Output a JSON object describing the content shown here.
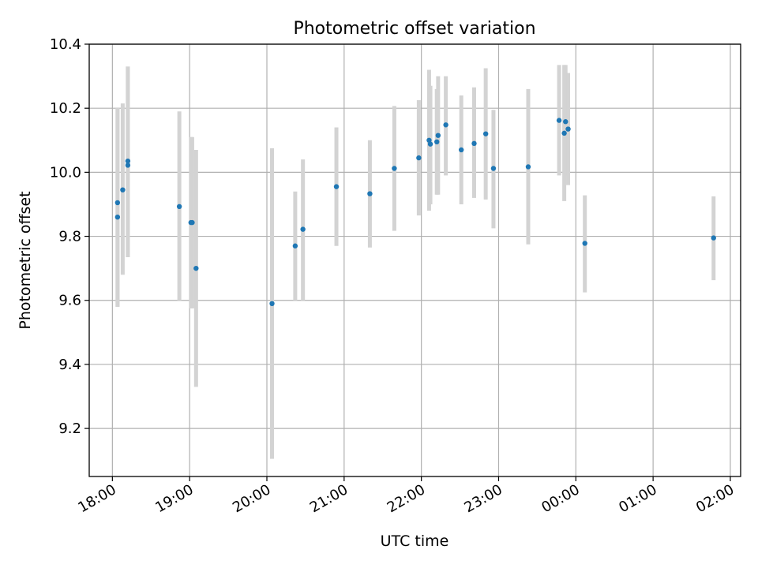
{
  "chart_data": {
    "type": "scatter",
    "title": "Photometric offset variation",
    "xlabel": "UTC time",
    "ylabel": "Photometric offset",
    "x_tick_labels": [
      "18:00",
      "19:00",
      "20:00",
      "21:00",
      "22:00",
      "23:00",
      "00:00",
      "01:00",
      "02:00"
    ],
    "y_ticks": [
      9.2,
      9.4,
      9.6,
      9.8,
      10.0,
      10.2,
      10.4
    ],
    "y_tick_labels": [
      "9.2",
      "9.4",
      "9.6",
      "9.8",
      "10.0",
      "10.2",
      "10.4"
    ],
    "xlim": [
      "17:42",
      "02:08"
    ],
    "ylim": [
      9.05,
      10.4
    ],
    "grid": true,
    "colors": {
      "points": "#1f77b4",
      "errorbars": "#d3d3d3",
      "grid": "#b0b0b0"
    },
    "points": [
      {
        "x": "18:04",
        "y": 9.86,
        "ylow": 9.58,
        "yhigh": 10.2
      },
      {
        "x": "18:04",
        "y": 9.905,
        "ylow": 9.58,
        "yhigh": 10.2
      },
      {
        "x": "18:08",
        "y": 9.945,
        "ylow": 9.68,
        "yhigh": 10.215
      },
      {
        "x": "18:12",
        "y": 10.035,
        "ylow": 9.735,
        "yhigh": 10.33
      },
      {
        "x": "18:12",
        "y": 10.022,
        "ylow": 9.735,
        "yhigh": 10.33
      },
      {
        "x": "18:52",
        "y": 9.893,
        "ylow": 9.6,
        "yhigh": 10.19
      },
      {
        "x": "19:01",
        "y": 9.843,
        "ylow": 9.575,
        "yhigh": 10.11
      },
      {
        "x": "19:02",
        "y": 9.843,
        "ylow": 9.575,
        "yhigh": 10.11
      },
      {
        "x": "19:05",
        "y": 9.7,
        "ylow": 9.33,
        "yhigh": 10.07
      },
      {
        "x": "20:04",
        "y": 9.59,
        "ylow": 9.105,
        "yhigh": 10.075
      },
      {
        "x": "20:22",
        "y": 9.77,
        "ylow": 9.6,
        "yhigh": 9.94
      },
      {
        "x": "20:28",
        "y": 9.822,
        "ylow": 9.6,
        "yhigh": 10.04
      },
      {
        "x": "20:54",
        "y": 9.955,
        "ylow": 9.77,
        "yhigh": 10.14
      },
      {
        "x": "21:20",
        "y": 9.933,
        "ylow": 9.765,
        "yhigh": 10.1
      },
      {
        "x": "21:39",
        "y": 10.012,
        "ylow": 9.817,
        "yhigh": 10.207
      },
      {
        "x": "21:58",
        "y": 10.045,
        "ylow": 9.865,
        "yhigh": 10.225
      },
      {
        "x": "22:06",
        "y": 10.1,
        "ylow": 9.88,
        "yhigh": 10.32
      },
      {
        "x": "22:07",
        "y": 10.088,
        "ylow": 9.9,
        "yhigh": 10.27
      },
      {
        "x": "22:12",
        "y": 10.095,
        "ylow": 9.93,
        "yhigh": 10.26
      },
      {
        "x": "22:13",
        "y": 10.115,
        "ylow": 9.93,
        "yhigh": 10.3
      },
      {
        "x": "22:19",
        "y": 10.148,
        "ylow": 9.99,
        "yhigh": 10.3
      },
      {
        "x": "22:31",
        "y": 10.07,
        "ylow": 9.9,
        "yhigh": 10.24
      },
      {
        "x": "22:41",
        "y": 10.09,
        "ylow": 9.92,
        "yhigh": 10.265
      },
      {
        "x": "22:50",
        "y": 10.12,
        "ylow": 9.915,
        "yhigh": 10.325
      },
      {
        "x": "22:56",
        "y": 10.012,
        "ylow": 9.825,
        "yhigh": 10.195
      },
      {
        "x": "23:23",
        "y": 10.017,
        "ylow": 9.775,
        "yhigh": 10.26
      },
      {
        "x": "23:47",
        "y": 10.162,
        "ylow": 9.99,
        "yhigh": 10.335
      },
      {
        "x": "23:51",
        "y": 10.122,
        "ylow": 9.91,
        "yhigh": 10.335
      },
      {
        "x": "23:52",
        "y": 10.158,
        "ylow": 9.99,
        "yhigh": 10.335
      },
      {
        "x": "23:54",
        "y": 10.135,
        "ylow": 9.96,
        "yhigh": 10.31
      },
      {
        "x": "00:07",
        "y": 9.778,
        "ylow": 9.625,
        "yhigh": 9.928
      },
      {
        "x": "01:47",
        "y": 9.795,
        "ylow": 9.663,
        "yhigh": 9.925
      }
    ]
  }
}
